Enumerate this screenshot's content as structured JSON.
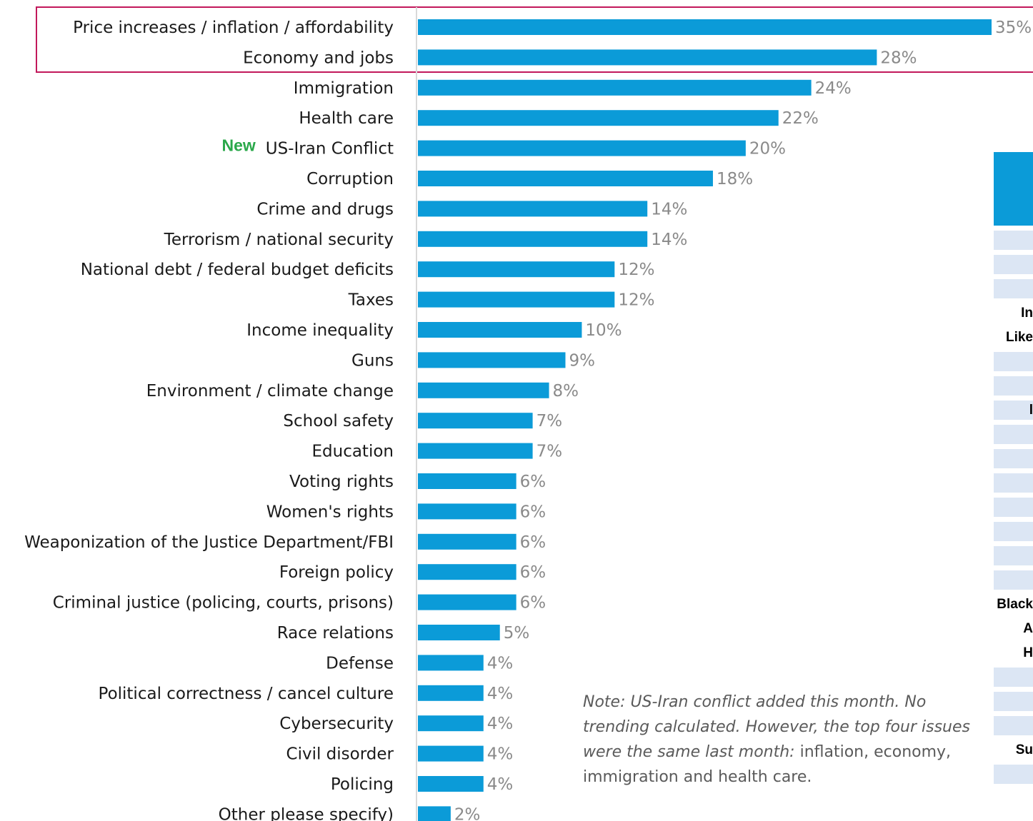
{
  "chart_data": {
    "type": "bar",
    "orientation": "horizontal",
    "categories": [
      "Price increases / inflation / affordability",
      "Economy and jobs",
      "Immigration",
      "Health care",
      "US-Iran Conflict",
      "Corruption",
      "Crime and drugs",
      "Terrorism / national security",
      "National debt / federal budget deficits",
      "Taxes",
      "Income inequality",
      "Guns",
      "Environment / climate change",
      "School safety",
      "Education",
      "Voting rights",
      "Women's rights",
      "Weaponization of the Justice Department/FBI",
      "Foreign policy",
      "Criminal justice (policing, courts, prisons)",
      "Race relations",
      "Defense",
      "Political correctness / cancel culture",
      "Cybersecurity",
      "Civil disorder",
      "Policing",
      "Other please specify)"
    ],
    "values": [
      35,
      28,
      24,
      22,
      20,
      18,
      14,
      14,
      12,
      12,
      10,
      9,
      8,
      7,
      7,
      6,
      6,
      6,
      6,
      6,
      5,
      4,
      4,
      4,
      4,
      4,
      2
    ],
    "value_labels": [
      "35%",
      "28%",
      "24%",
      "22%",
      "20%",
      "18%",
      "14%",
      "14%",
      "12%",
      "12%",
      "10%",
      "9%",
      "8%",
      "7%",
      "7%",
      "6%",
      "6%",
      "6%",
      "6%",
      "6%",
      "5%",
      "4%",
      "4%",
      "4%",
      "4%",
      "4%",
      "2%"
    ],
    "xlim": [
      0,
      35
    ],
    "bar_color": "#0b9bd8",
    "highlight_box_color": "#c2185b",
    "highlighted_categories": [
      "Price increases / inflation / affordability",
      "Economy and jobs"
    ],
    "new_tag": {
      "text": "New",
      "category": "US-Iran Conflict",
      "color": "#2aa84a"
    },
    "title": "",
    "xlabel": "",
    "ylabel": "",
    "grid": false
  },
  "note": {
    "italic_text": "Note: US-Iran conflict added this month. No trending calculated. However, the top four issues were the same last month:",
    "plain_text": " inflation, economy, immigration and health care."
  },
  "side_table": {
    "header_color": "#0b9bd8",
    "row_color": "#dce6f4",
    "fragments": [
      "",
      "",
      "",
      "In",
      "Like",
      "",
      "",
      "l",
      "",
      "",
      "",
      "",
      "",
      "",
      "",
      "Black",
      "A",
      "H",
      "",
      "",
      "",
      "Su",
      ""
    ]
  }
}
